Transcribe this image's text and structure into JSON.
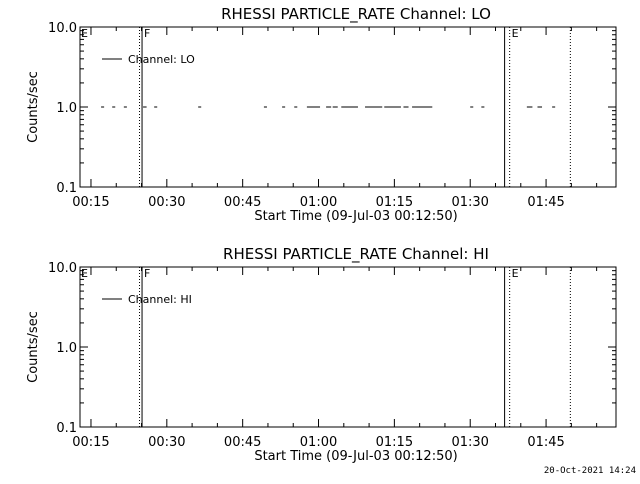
{
  "chart_data": [
    {
      "type": "line",
      "title": "RHESSI PARTICLE_RATE Channel: LO",
      "xlabel": "Start Time (09-Jul-03 00:12:50)",
      "ylabel": "Counts/sec",
      "x_unit": "minutes after 00:00 UT",
      "xlim": [
        12.83,
        118.83
      ],
      "ylim": [
        0.1,
        10.0
      ],
      "y_scale": "log",
      "x_ticks": [
        "00:15",
        "00:30",
        "00:45",
        "01:00",
        "01:15",
        "01:30",
        "01:45"
      ],
      "x_tick_values": [
        15,
        30,
        45,
        60,
        75,
        90,
        105
      ],
      "y_ticks": [
        "10.0",
        "1.0",
        "0.1"
      ],
      "y_tick_values": [
        10.0,
        1.0,
        0.1
      ],
      "legend": {
        "label": "Channel: LO",
        "position": "top-left"
      },
      "series": [
        {
          "name": "Channel: LO",
          "value": 1.0,
          "segments": [
            [
              17.0,
              17.6
            ],
            [
              19.2,
              19.8
            ],
            [
              21.5,
              22.1
            ],
            [
              25.3,
              26.0
            ],
            [
              27.5,
              28.1
            ],
            [
              36.2,
              36.8
            ],
            [
              49.2,
              49.8
            ],
            [
              52.8,
              53.4
            ],
            [
              55.2,
              55.8
            ],
            [
              57.7,
              60.3
            ],
            [
              61.5,
              62.5
            ],
            [
              62.8,
              63.8
            ],
            [
              64.5,
              67.8
            ],
            [
              69.2,
              72.6
            ],
            [
              73.0,
              76.3
            ],
            [
              76.8,
              77.8
            ],
            [
              78.5,
              82.5
            ],
            [
              90.0,
              90.6
            ],
            [
              92.2,
              92.8
            ],
            [
              101.2,
              102.3
            ],
            [
              103.3,
              104.2
            ],
            [
              106.2,
              106.8
            ]
          ]
        }
      ],
      "vlines": [
        {
          "x": 24.6,
          "style": "dotted",
          "label": ""
        },
        {
          "x": 25.1,
          "style": "solid",
          "label": "F"
        },
        {
          "x": 96.8,
          "style": "solid",
          "label": ""
        },
        {
          "x": 97.8,
          "style": "dotted",
          "label": "E"
        },
        {
          "x": 109.8,
          "style": "dotted",
          "label": ""
        }
      ],
      "left_label": "E"
    },
    {
      "type": "line",
      "title": "RHESSI PARTICLE_RATE Channel: HI",
      "xlabel": "Start Time (09-Jul-03 00:12:50)",
      "ylabel": "Counts/sec",
      "x_unit": "minutes after 00:00 UT",
      "xlim": [
        12.83,
        118.83
      ],
      "ylim": [
        0.1,
        10.0
      ],
      "y_scale": "log",
      "x_ticks": [
        "00:15",
        "00:30",
        "00:45",
        "01:00",
        "01:15",
        "01:30",
        "01:45"
      ],
      "x_tick_values": [
        15,
        30,
        45,
        60,
        75,
        90,
        105
      ],
      "y_ticks": [
        "10.0",
        "1.0",
        "0.1"
      ],
      "y_tick_values": [
        10.0,
        1.0,
        0.1
      ],
      "legend": {
        "label": "Channel: HI",
        "position": "top-left"
      },
      "series": [
        {
          "name": "Channel: HI",
          "value": 1.0,
          "segments": []
        }
      ],
      "vlines": [
        {
          "x": 24.6,
          "style": "dotted",
          "label": ""
        },
        {
          "x": 25.1,
          "style": "solid",
          "label": "F"
        },
        {
          "x": 96.8,
          "style": "solid",
          "label": ""
        },
        {
          "x": 97.8,
          "style": "dotted",
          "label": "E"
        },
        {
          "x": 109.8,
          "style": "dotted",
          "label": ""
        }
      ],
      "left_label": "E"
    }
  ],
  "footer": {
    "timestamp": "20-Oct-2021 14:24"
  }
}
